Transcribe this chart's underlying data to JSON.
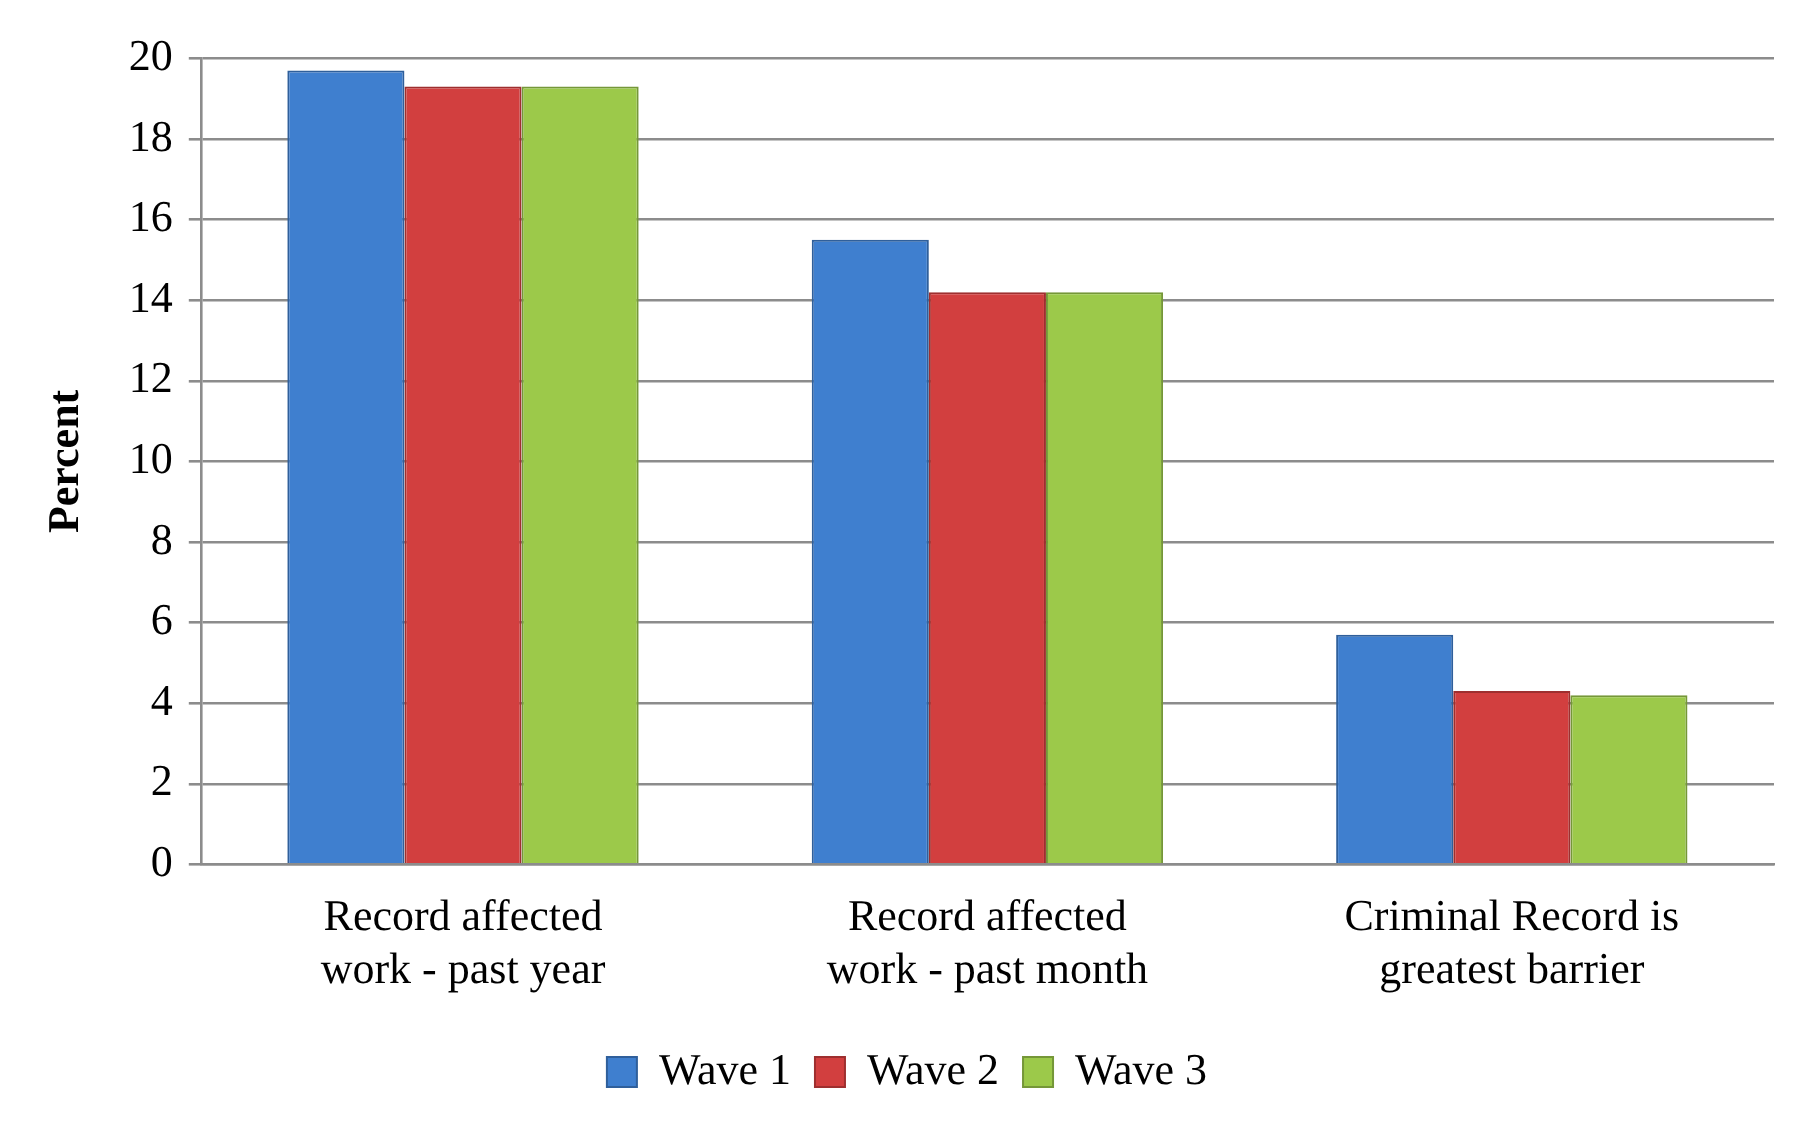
{
  "chart_data": {
    "type": "bar",
    "ylabel": "Percent",
    "categories": [
      "Record affected work - past year",
      "Record affected work - past month",
      "Criminal Record is greatest barrier"
    ],
    "series": [
      {
        "name": "Wave 1",
        "color": "#3f7fcf",
        "values": [
          19.7,
          15.5,
          5.7
        ]
      },
      {
        "name": "Wave 2",
        "color": "#d23f3f",
        "values": [
          19.3,
          14.2,
          4.3
        ]
      },
      {
        "name": "Wave 3",
        "color": "#9cc94a",
        "values": [
          19.3,
          14.2,
          4.2
        ]
      }
    ],
    "ylim": [
      0,
      20
    ],
    "yticks": [
      0,
      2,
      4,
      6,
      8,
      10,
      12,
      14,
      16,
      18,
      20
    ],
    "grid": "y",
    "legend": "bottom"
  }
}
